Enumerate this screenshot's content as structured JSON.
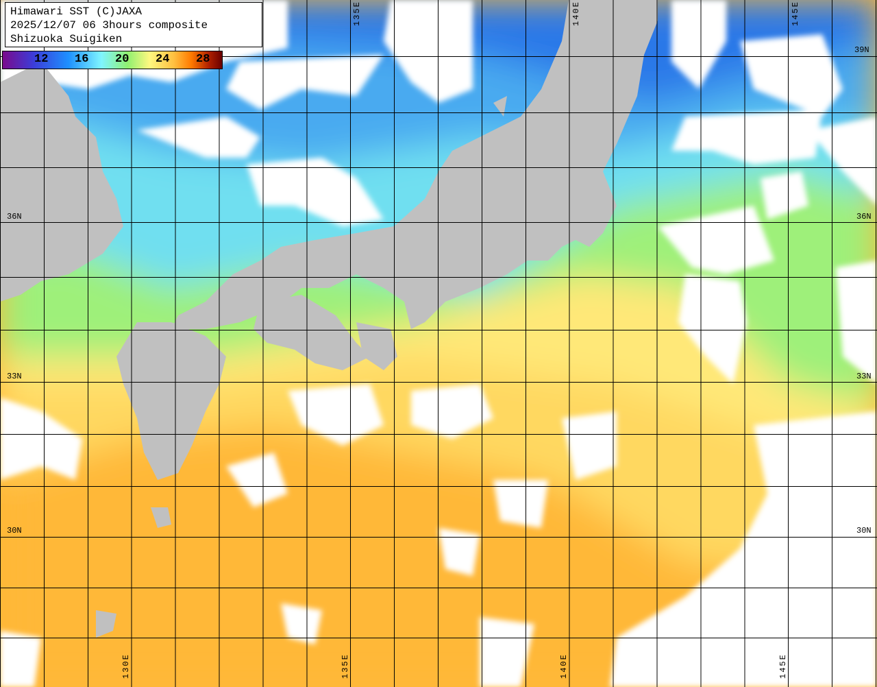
{
  "title": {
    "line1": "Himawari SST (C)JAXA",
    "line2": "2025/12/07 06 3hours composite",
    "line3": "Shizuoka Suigiken"
  },
  "colorbar": {
    "ticks": [
      "12",
      "16",
      "20",
      "24",
      "28"
    ],
    "unit_range": [
      8,
      31
    ]
  },
  "lat_labels": [
    "39N",
    "36N",
    "33N",
    "30N"
  ],
  "lon_labels_top": [
    "135E",
    "140E",
    "145E"
  ],
  "lon_labels_bottom": [
    "130E",
    "135E",
    "140E",
    "145E"
  ],
  "colors": {
    "land": "#c0c0c0",
    "cloud": "#ffffff",
    "cold": "#2a7ae8",
    "cool": "#62c8f5",
    "mild": "#90ee70",
    "warm": "#ffe070",
    "hot": "#ffb030",
    "grid": "#000000"
  }
}
